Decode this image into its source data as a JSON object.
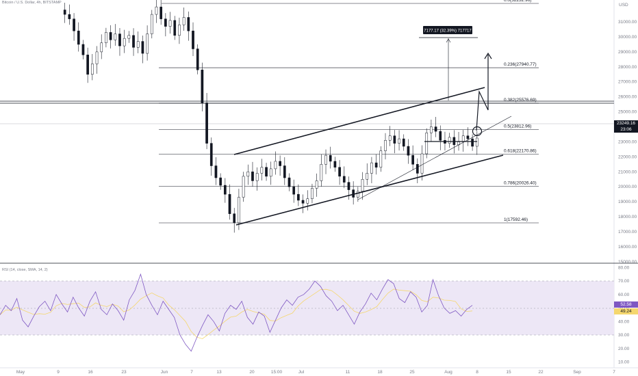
{
  "header": {
    "symbol": "Bitcoin / U.S. Dollar, 4h, BITSTAMP"
  },
  "price_axis": {
    "currency": "USD",
    "ticks": [
      "31000.00",
      "30000.00",
      "29000.00",
      "28000.00",
      "27000.00",
      "26000.00",
      "25000.00",
      "24000.00",
      "23000.00",
      "22000.00",
      "21000.00",
      "20000.00",
      "19000.00",
      "18000.00",
      "17000.00",
      "16000.00",
      "15000.00"
    ],
    "current_price": "23249.16",
    "countdown": "23:06",
    "current_color": "#131722"
  },
  "fib_levels": [
    {
      "label": "0.0(32232.96)",
      "price": 32232.96
    },
    {
      "label": "0.236(27940.77)",
      "price": 27940.77
    },
    {
      "label": "0.382(25576.69)",
      "price": 25576.69
    },
    {
      "label": "0.5(23812.96)",
      "price": 23812.96
    },
    {
      "label": "0.618(22170.86)",
      "price": 22170.86
    },
    {
      "label": "0.786(20026.40)",
      "price": 20026.4
    },
    {
      "label": "1(17592.46)",
      "price": 17592.46
    }
  ],
  "measure_label": "7177.17 (32.39%) 717717",
  "rsi": {
    "header": "RSI (14, close, SMA, 14, 2)",
    "ticks": [
      "80.00",
      "70.00",
      "60.00",
      "50.00",
      "40.00",
      "30.00",
      "20.00",
      "10.00"
    ],
    "value": "52.58",
    "ma_value": "49.24",
    "line_color": "#7e57c2",
    "ma_color": "#f5d76e",
    "band_color": "#ede7f6"
  },
  "time_axis": [
    "May",
    "9",
    "16",
    "23",
    "Jun",
    "7",
    "13",
    "20",
    "15:00",
    "Jul",
    "11",
    "18",
    "25",
    "Aug",
    "8",
    "15",
    "22",
    "Sep",
    "7"
  ],
  "chart_data": {
    "type": "candlestick",
    "title": "Bitcoin / U.S. Dollar, 4h, BITSTAMP",
    "ylabel": "USD",
    "ylim": [
      15000,
      32500
    ],
    "current_price": 23249.16,
    "fib_retracement": [
      32232.96,
      27940.77,
      25576.69,
      23812.96,
      22170.86,
      20026.4,
      17592.46
    ],
    "price_path": [
      [
        0,
        31800
      ],
      [
        3,
        31500
      ],
      [
        6,
        31200
      ],
      [
        9,
        30400
      ],
      [
        12,
        29500
      ],
      [
        15,
        28800
      ],
      [
        18,
        27500
      ],
      [
        21,
        28200
      ],
      [
        24,
        29000
      ],
      [
        27,
        29600
      ],
      [
        30,
        30300
      ],
      [
        33,
        29800
      ],
      [
        36,
        30200
      ],
      [
        39,
        29400
      ],
      [
        42,
        29900
      ],
      [
        45,
        30100
      ],
      [
        48,
        29300
      ],
      [
        51,
        29700
      ],
      [
        54,
        28900
      ],
      [
        57,
        30200
      ],
      [
        60,
        31500
      ],
      [
        63,
        32000
      ],
      [
        66,
        31200
      ],
      [
        69,
        30700
      ],
      [
        72,
        31100
      ],
      [
        75,
        30100
      ],
      [
        78,
        30800
      ],
      [
        81,
        31300
      ],
      [
        84,
        30400
      ],
      [
        87,
        29200
      ],
      [
        90,
        27800
      ],
      [
        93,
        25600
      ],
      [
        96,
        22900
      ],
      [
        99,
        21400
      ],
      [
        102,
        20600
      ],
      [
        105,
        20100
      ],
      [
        108,
        19500
      ],
      [
        111,
        18200
      ],
      [
        114,
        17600
      ],
      [
        117,
        19300
      ],
      [
        120,
        20700
      ],
      [
        123,
        21000
      ],
      [
        126,
        20400
      ],
      [
        129,
        20900
      ],
      [
        132,
        21300
      ],
      [
        135,
        20700
      ],
      [
        138,
        21200
      ],
      [
        141,
        21700
      ],
      [
        144,
        21400
      ],
      [
        147,
        20600
      ],
      [
        150,
        20000
      ],
      [
        153,
        19500
      ],
      [
        156,
        19100
      ],
      [
        159,
        18900
      ],
      [
        162,
        19200
      ],
      [
        165,
        19900
      ],
      [
        168,
        20400
      ],
      [
        171,
        21500
      ],
      [
        174,
        22100
      ],
      [
        177,
        21700
      ],
      [
        180,
        21300
      ],
      [
        183,
        20700
      ],
      [
        186,
        20300
      ],
      [
        189,
        19800
      ],
      [
        192,
        19300
      ],
      [
        195,
        19700
      ],
      [
        198,
        20500
      ],
      [
        201,
        20900
      ],
      [
        204,
        21600
      ],
      [
        207,
        21300
      ],
      [
        210,
        22400
      ],
      [
        213,
        23100
      ],
      [
        216,
        23400
      ],
      [
        219,
        22900
      ],
      [
        222,
        23200
      ],
      [
        225,
        22700
      ],
      [
        228,
        22100
      ],
      [
        231,
        21500
      ],
      [
        234,
        20900
      ],
      [
        237,
        22200
      ],
      [
        240,
        23600
      ],
      [
        243,
        24000
      ],
      [
        246,
        23700
      ],
      [
        249,
        23100
      ],
      [
        252,
        22900
      ],
      [
        255,
        23300
      ],
      [
        258,
        22800
      ],
      [
        261,
        23000
      ],
      [
        264,
        23400
      ],
      [
        267,
        23200
      ],
      [
        270,
        22700
      ],
      [
        273,
        23249
      ]
    ],
    "rsi_series": {
      "name": "RSI",
      "range": [
        10,
        80
      ],
      "overbought": 70,
      "middle": 50,
      "oversold": 30,
      "values": [
        45,
        52,
        48,
        57,
        41,
        36,
        44,
        51,
        55,
        48,
        60,
        53,
        47,
        58,
        50,
        44,
        55,
        62,
        49,
        45,
        53,
        48,
        41,
        56,
        63,
        75,
        60,
        52,
        45,
        55,
        49,
        43,
        30,
        23,
        18,
        28,
        37,
        45,
        40,
        33,
        46,
        52,
        49,
        55,
        43,
        38,
        47,
        44,
        32,
        41,
        50,
        56,
        52,
        58,
        60,
        64,
        70,
        66,
        59,
        55,
        48,
        52,
        45,
        38,
        47,
        53,
        61,
        56,
        64,
        71,
        68,
        57,
        54,
        62,
        58,
        47,
        52,
        71,
        59,
        50,
        46,
        48,
        44,
        49,
        52
      ]
    }
  }
}
